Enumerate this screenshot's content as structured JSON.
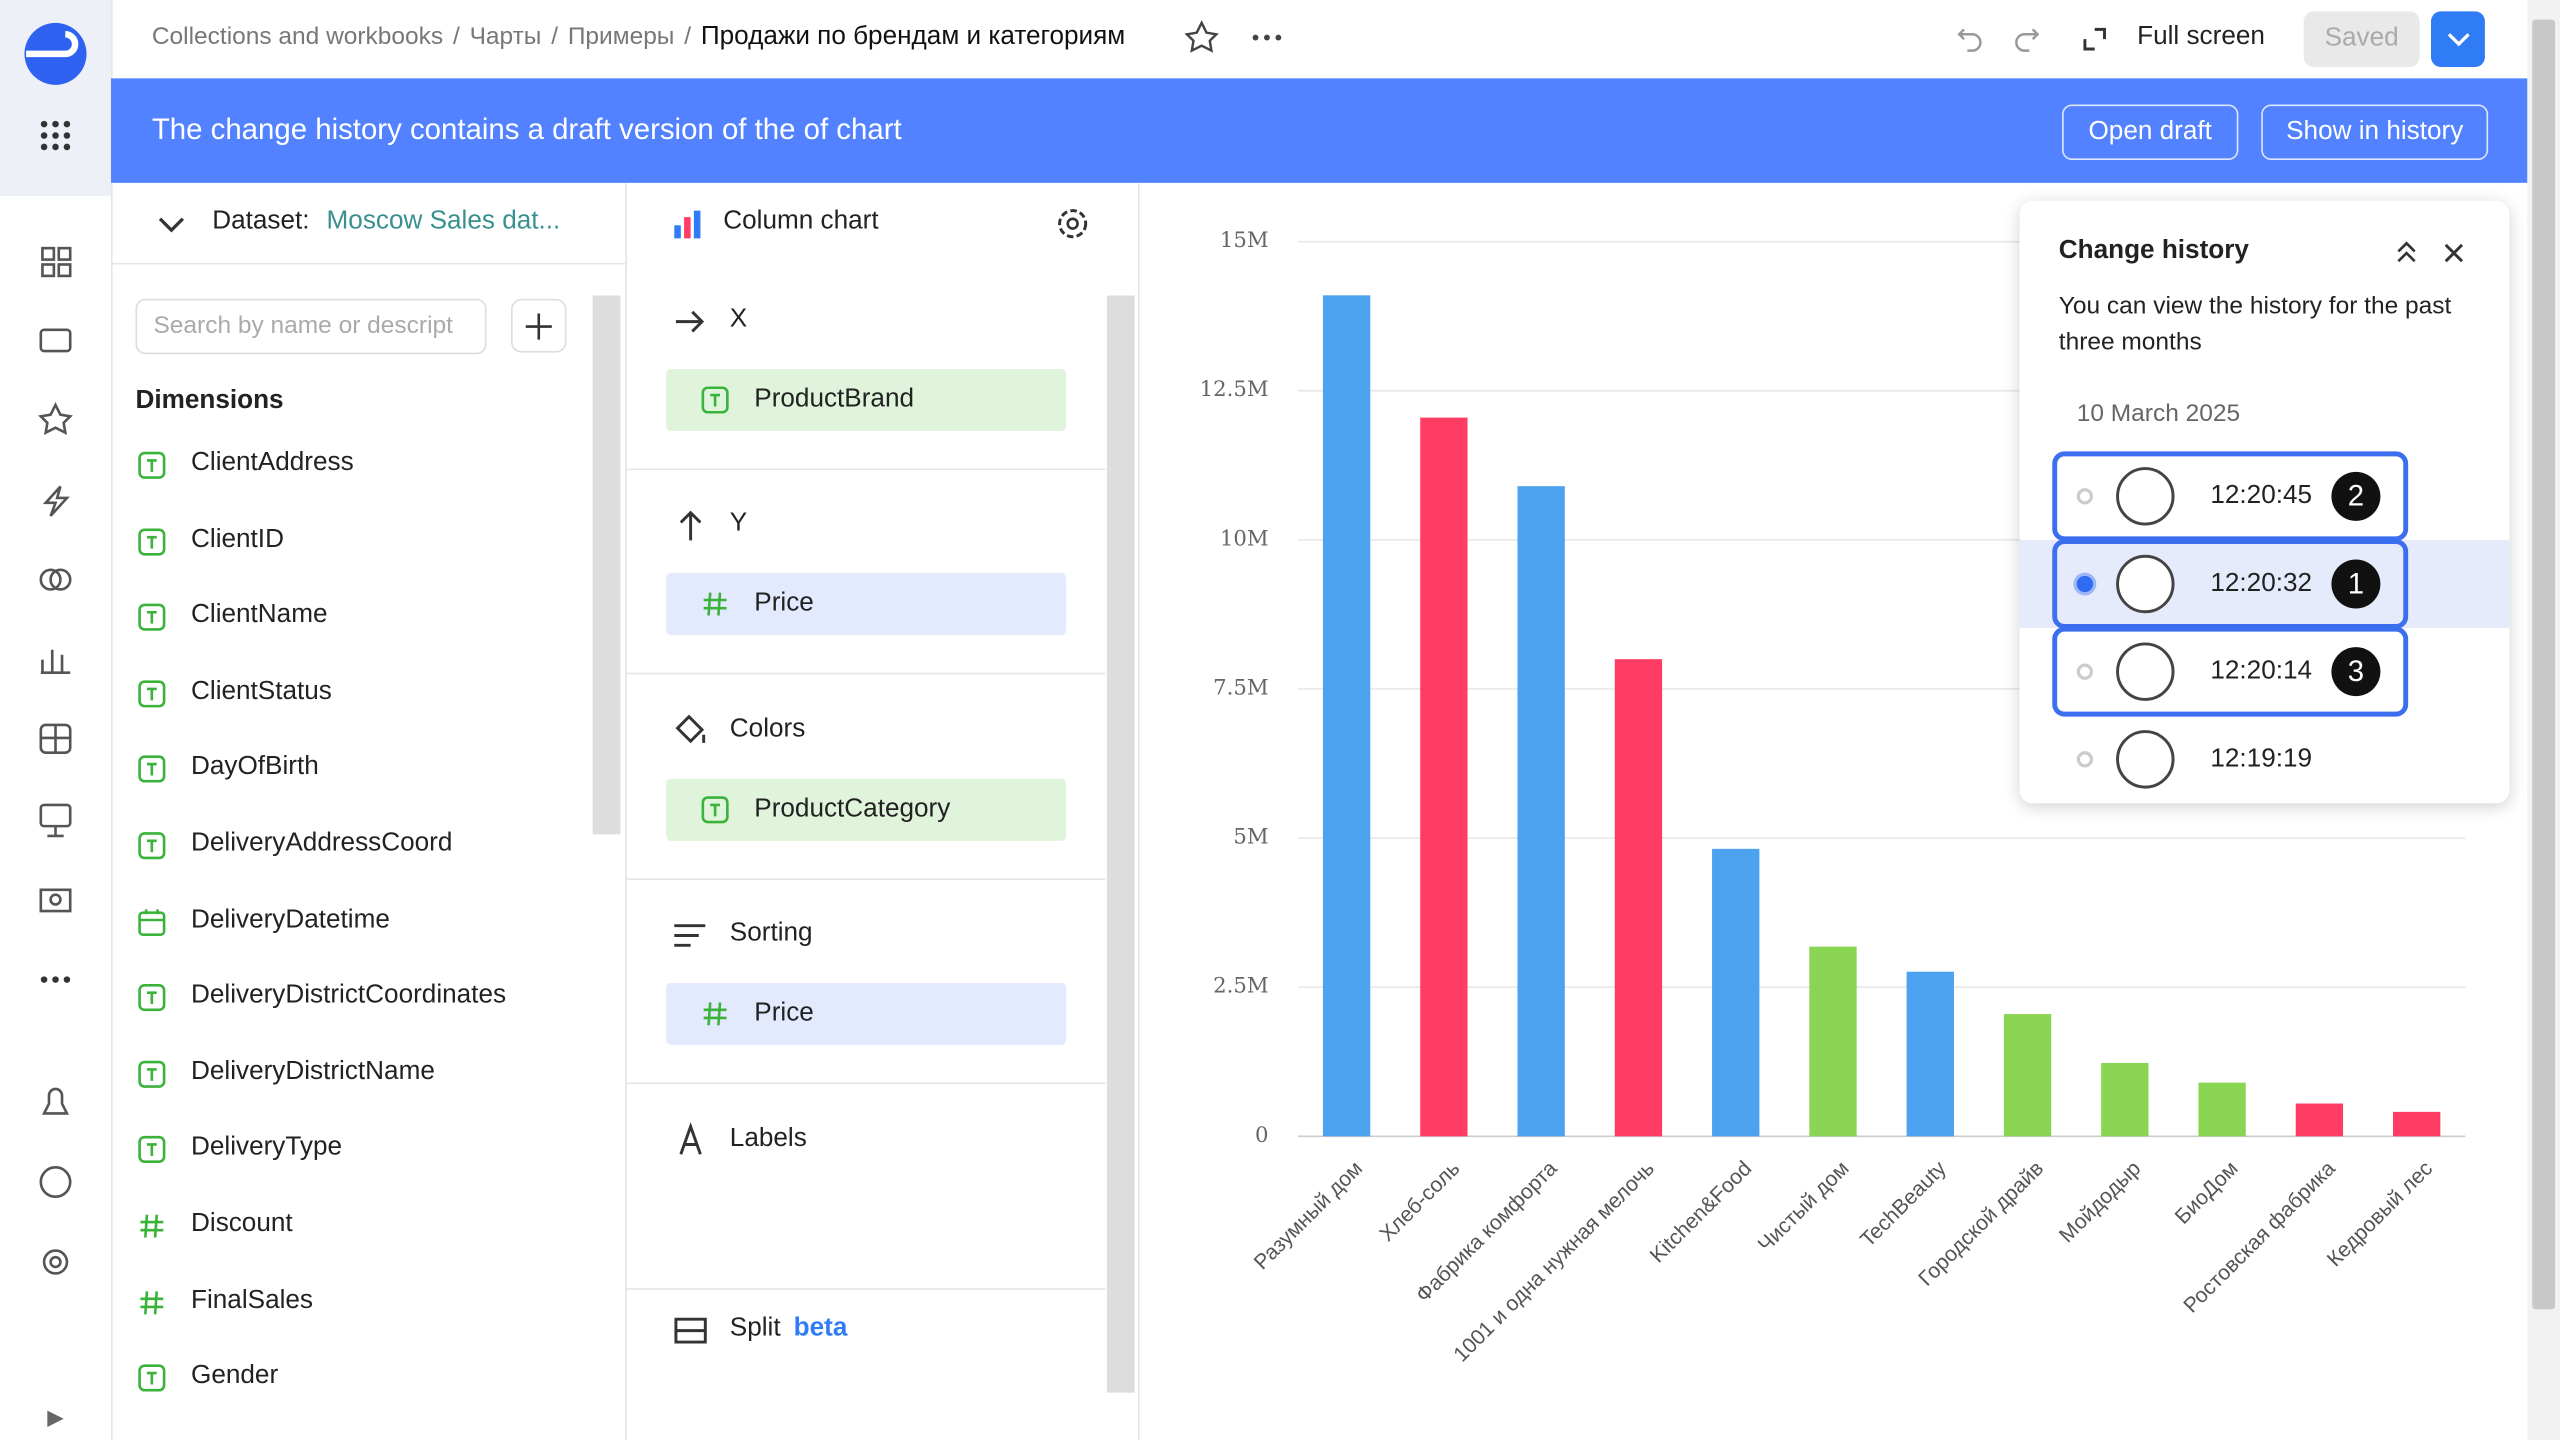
{
  "header": {
    "breadcrumbs": [
      "Collections and workbooks",
      "Чарты",
      "Примеры"
    ],
    "separator": "/",
    "title": "Продажи по брендам и категориям",
    "fullscreen": "Full screen",
    "saved": "Saved"
  },
  "banner": {
    "text": "The change history contains a draft version of the of chart",
    "open_draft": "Open draft",
    "show_in_history": "Show in history"
  },
  "dataset": {
    "label": "Dataset:",
    "name": "Moscow Sales dat...",
    "search_placeholder": "Search by name or descript",
    "dimensions_title": "Dimensions",
    "fields": [
      {
        "name": "ClientAddress",
        "icon": "text"
      },
      {
        "name": "ClientID",
        "icon": "text"
      },
      {
        "name": "ClientName",
        "icon": "text"
      },
      {
        "name": "ClientStatus",
        "icon": "text"
      },
      {
        "name": "DayOfBirth",
        "icon": "text"
      },
      {
        "name": "DeliveryAddressCoord",
        "icon": "text"
      },
      {
        "name": "DeliveryDatetime",
        "icon": "date"
      },
      {
        "name": "DeliveryDistrictCoordinates",
        "icon": "text"
      },
      {
        "name": "DeliveryDistrictName",
        "icon": "text"
      },
      {
        "name": "DeliveryType",
        "icon": "text"
      },
      {
        "name": "Discount",
        "icon": "number"
      },
      {
        "name": "FinalSales",
        "icon": "number"
      },
      {
        "name": "Gender",
        "icon": "text"
      }
    ]
  },
  "config": {
    "chart_type": "Column chart",
    "sections": [
      {
        "title": "X",
        "fields": [
          {
            "name": "ProductBrand",
            "icon": "text"
          }
        ]
      },
      {
        "title": "Y",
        "fields": [
          {
            "name": "Price",
            "icon": "number"
          }
        ]
      },
      {
        "title": "Colors",
        "fields": [
          {
            "name": "ProductCategory",
            "icon": "text"
          }
        ]
      },
      {
        "title": "Sorting",
        "fields": [
          {
            "name": "Price",
            "icon": "number"
          }
        ]
      },
      {
        "title": "Labels",
        "fields": []
      },
      {
        "title": "Split",
        "badge": "beta",
        "fields": []
      }
    ]
  },
  "history": {
    "title": "Change history",
    "description": "You can view the history for the past three months",
    "date": "10 March 2025",
    "items": [
      {
        "time": "12:20:45",
        "badge": "2"
      },
      {
        "time": "12:20:32",
        "badge": "1",
        "selected": true
      },
      {
        "time": "12:20:14",
        "badge": "3"
      },
      {
        "time": "12:19:19"
      }
    ]
  },
  "chart_data": {
    "type": "bar",
    "categories": [
      "Разумный дом",
      "Хлеб-соль",
      "Фабрика комфорта",
      "1001 и одна нужная мелочь",
      "Kitchen&Food",
      "Чистый дом",
      "TechBeauty",
      "Городской драйв",
      "Мойдодыр",
      "БиоДом",
      "Ростовская фабрика",
      "Кедровый лес"
    ],
    "values": [
      14100000,
      12050000,
      10900000,
      8000000,
      4820000,
      3180000,
      2760000,
      2050000,
      1230000,
      900000,
      550000,
      410000
    ],
    "colors": [
      "#4da2f0",
      "#ff3d64",
      "#4da2f0",
      "#ff3d64",
      "#4da2f0",
      "#8ad554",
      "#4da2f0",
      "#8ad554",
      "#8ad554",
      "#8ad554",
      "#ff3d64",
      "#ff3d64"
    ],
    "ylim": [
      0,
      15000000
    ],
    "yticks": [
      0,
      {
        "value": 2500000,
        "label": "2.5M"
      },
      {
        "value": 5000000,
        "label": "5M"
      },
      {
        "value": 7500000,
        "label": "7.5M"
      },
      {
        "value": 10000000,
        "label": "10M"
      },
      {
        "value": 12500000,
        "label": "12.5M"
      },
      {
        "value": 15000000,
        "label": "15M"
      }
    ],
    "grid": true
  }
}
